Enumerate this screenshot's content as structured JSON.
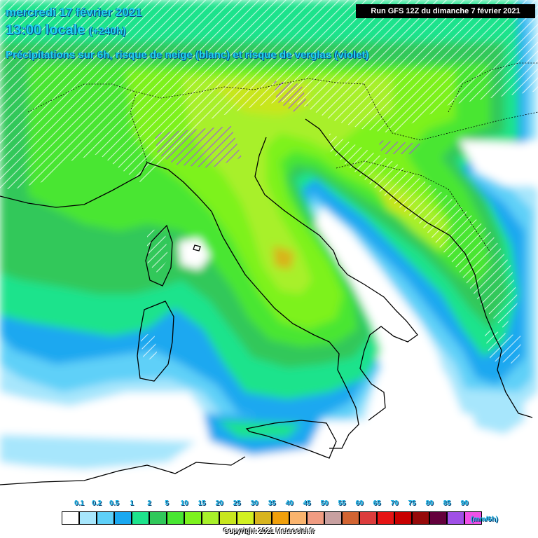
{
  "header": {
    "date_line": "mercredi 17 février 2021",
    "time_line": "13:00 locale",
    "lead_time": "(+240h)",
    "description": "Précipitations sur 6h, risque de neige (blanc) et risque de verglas (violet)"
  },
  "run_info": "Run GFS 12Z du dimanche 7 février 2021",
  "legend": {
    "unit": "(mm/6h)",
    "levels": [
      "0.1",
      "0.2",
      "0.5",
      "1",
      "2",
      "5",
      "10",
      "15",
      "20",
      "25",
      "30",
      "35",
      "40",
      "45",
      "50",
      "55",
      "60",
      "65",
      "70",
      "75",
      "80",
      "85",
      "90"
    ],
    "colors": [
      "#ffffff",
      "#a7e6fc",
      "#5fd0f8",
      "#1aa8f0",
      "#1ee38c",
      "#30c85a",
      "#48e632",
      "#7df21e",
      "#a8f02a",
      "#c8e61e",
      "#d2f021",
      "#d8b41e",
      "#f0a00c",
      "#fab46e",
      "#f09c82",
      "#c8a0a0",
      "#d26432",
      "#dc3c3c",
      "#e61414",
      "#c80000",
      "#960a0a",
      "#64003c",
      "#a050e6",
      "#f050e6"
    ]
  },
  "copyright": "Copyright 2021 Meteociel.fr",
  "colors": {
    "title": "#1fd6f0",
    "snow_hatch": "#ffffff",
    "freezing_rain_hatch": "#a050e6"
  }
}
